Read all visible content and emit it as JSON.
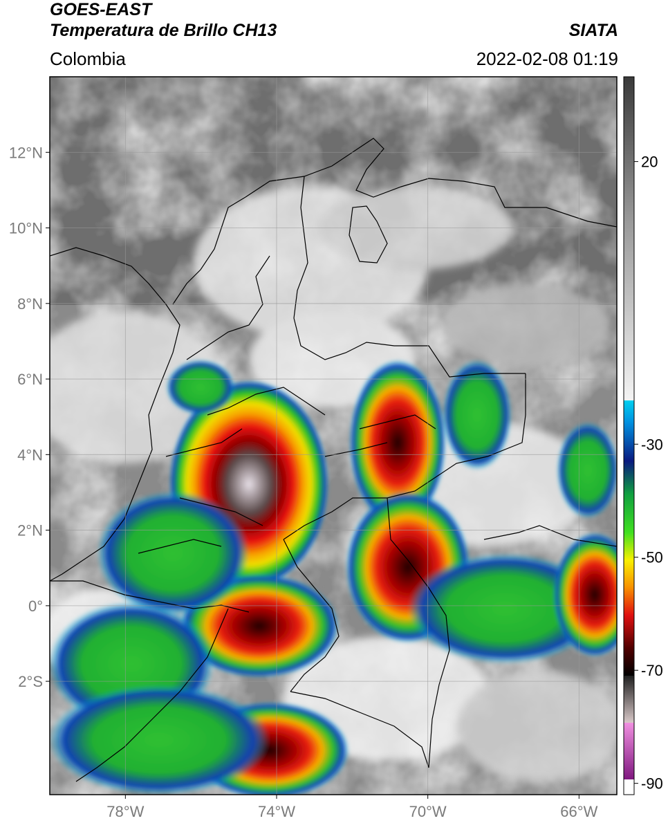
{
  "header": {
    "satellite": "GOES-EAST",
    "product": "Temperatura de Brillo CH13",
    "region": "Colombia",
    "agency": "SIATA",
    "datetime": "2022-02-08 01:19"
  },
  "map": {
    "lon_range": [
      -80,
      -65
    ],
    "lat_range": [
      -5,
      14
    ],
    "lat_ticks": [
      {
        "value": 12,
        "label": "12°N"
      },
      {
        "value": 10,
        "label": "10°N"
      },
      {
        "value": 8,
        "label": "8°N"
      },
      {
        "value": 6,
        "label": "6°N"
      },
      {
        "value": 4,
        "label": "4°N"
      },
      {
        "value": 2,
        "label": "2°N"
      },
      {
        "value": 0,
        "label": "0°"
      },
      {
        "value": -2,
        "label": "2°S"
      }
    ],
    "lon_ticks": [
      {
        "value": -78,
        "label": "78°W"
      },
      {
        "value": -74,
        "label": "74°W"
      },
      {
        "value": -70,
        "label": "70°W"
      },
      {
        "value": -66,
        "label": "66°W"
      }
    ],
    "grid": true
  },
  "colorbar": {
    "unit_range": [
      -92,
      35
    ],
    "ticks": [
      {
        "value": 20,
        "label": "20"
      },
      {
        "value": -30,
        "label": "-30"
      },
      {
        "value": -50,
        "label": "-50"
      },
      {
        "value": -70,
        "label": "-70"
      },
      {
        "value": -90,
        "label": "-90"
      }
    ],
    "colors": {
      "warm_dark": "#5a5a5a",
      "warm_light": "#f0f0f0",
      "cyan": "#00c8e8",
      "blue": "#0a2a8a",
      "green": "#18c018",
      "yellow": "#f8e000",
      "red": "#d81010",
      "black": "#000000",
      "pink": "#e080d0",
      "purple": "#8a2a8a"
    }
  }
}
